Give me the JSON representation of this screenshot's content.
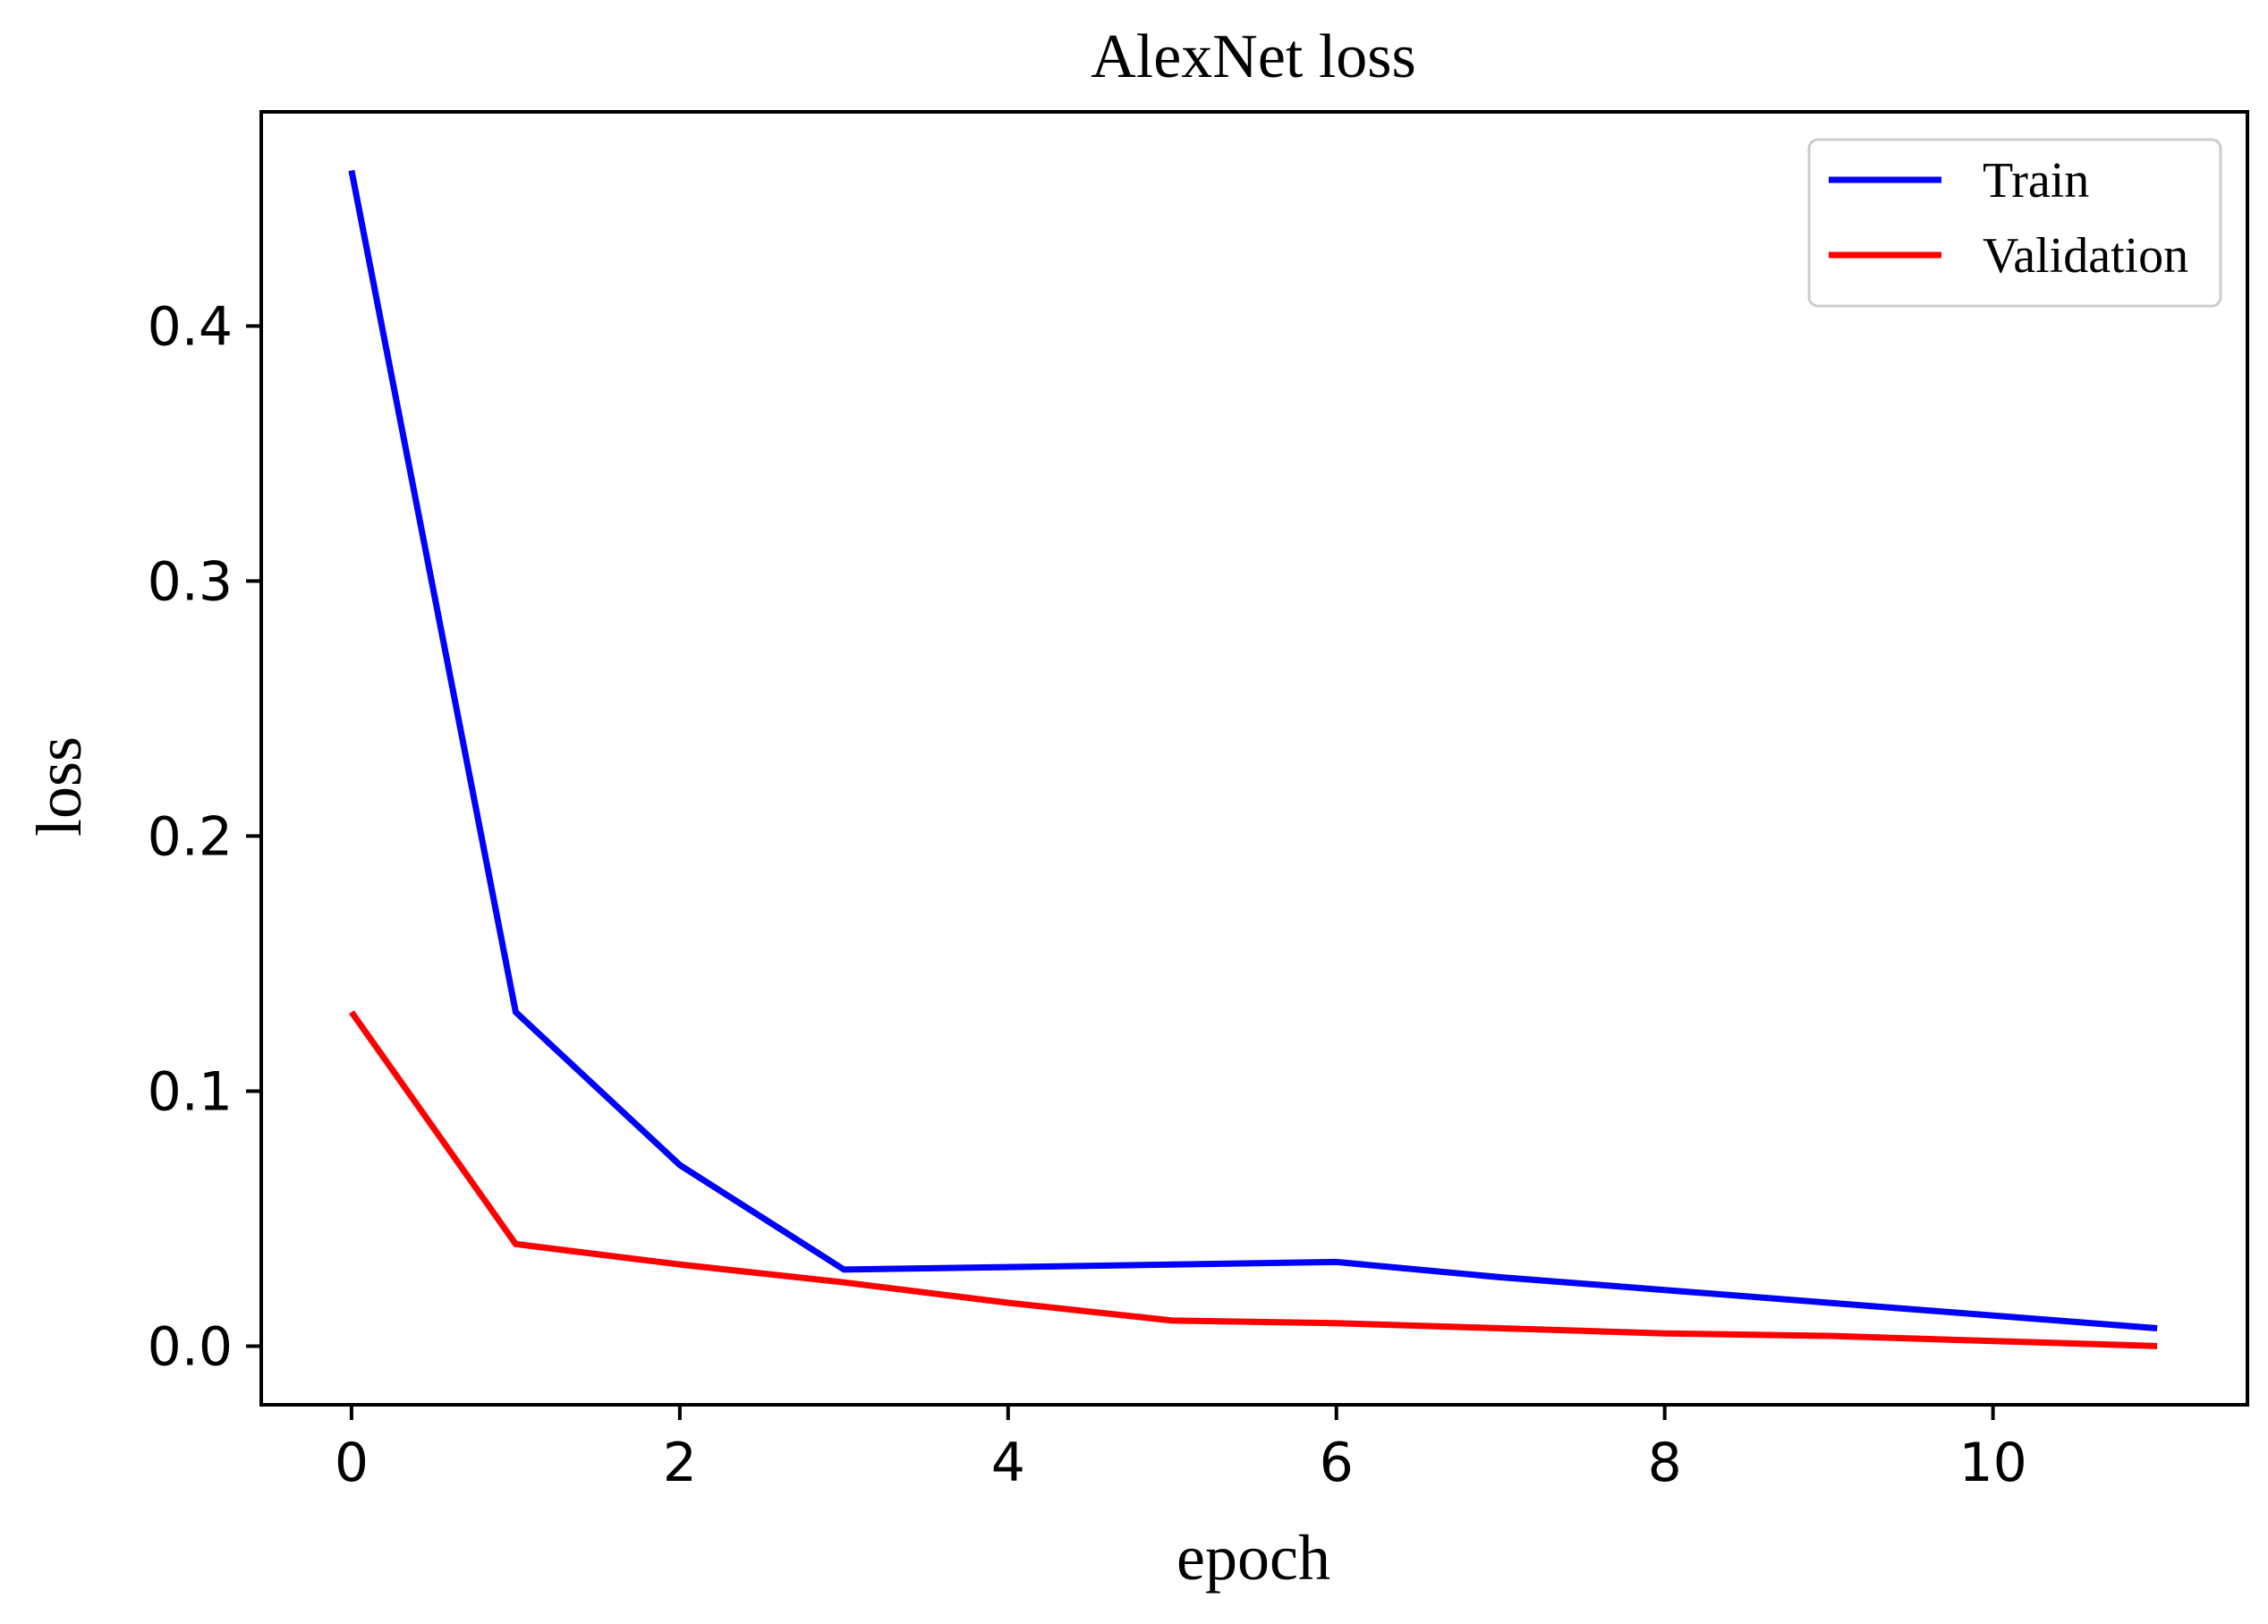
{
  "chart_data": {
    "type": "line",
    "title": "AlexNet loss",
    "xlabel": "epoch",
    "ylabel": "loss",
    "xlim": [
      -0.55,
      11.55
    ],
    "ylim": [
      -0.023,
      0.484
    ],
    "x_ticks": [
      0,
      2,
      4,
      6,
      8,
      10
    ],
    "x_tick_labels": [
      "0",
      "2",
      "4",
      "6",
      "8",
      "10"
    ],
    "y_ticks": [
      0.0,
      0.1,
      0.2,
      0.3,
      0.4
    ],
    "y_tick_labels": [
      "0.0",
      "0.1",
      "0.2",
      "0.3",
      "0.4"
    ],
    "grid": false,
    "legend_position": "top-right",
    "x": [
      0,
      1,
      2,
      3,
      4,
      5,
      6,
      7,
      8,
      9,
      10,
      11
    ],
    "series": [
      {
        "name": "Train",
        "color": "#0000ff",
        "values": [
          0.461,
          0.131,
          0.071,
          0.03,
          0.031,
          0.032,
          0.033,
          0.027,
          0.022,
          0.017,
          0.012,
          0.007
        ]
      },
      {
        "name": "Validation",
        "color": "#ff0000",
        "values": [
          0.131,
          0.04,
          0.032,
          0.025,
          0.017,
          0.01,
          0.009,
          0.007,
          0.005,
          0.004,
          0.002,
          0.0
        ]
      }
    ]
  }
}
